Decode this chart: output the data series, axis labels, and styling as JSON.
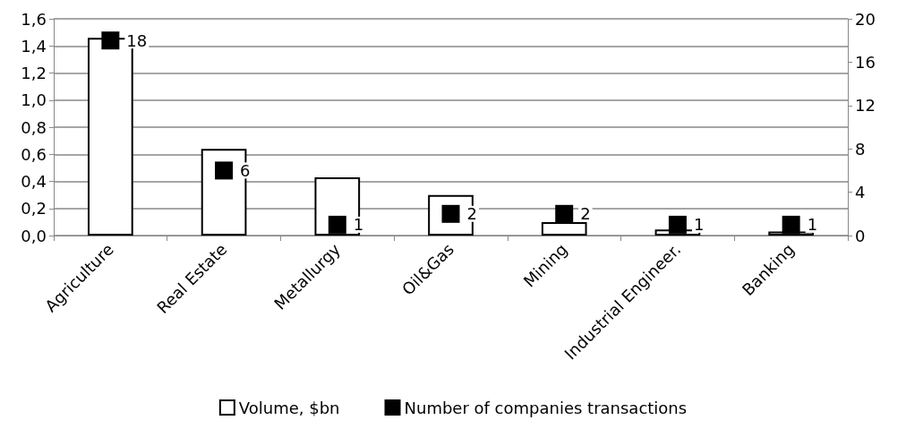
{
  "chart_data": {
    "type": "bar",
    "categories": [
      "Agriculture",
      "Real Estate",
      "Metallurgy",
      "Oil&Gas",
      "Mining",
      "Industrial Engineer.",
      "Banking"
    ],
    "series": [
      {
        "name": "Volume, $bn",
        "color": "#ffffff",
        "values": [
          1.46,
          0.64,
          0.43,
          0.3,
          0.1,
          0.045,
          0.03
        ]
      },
      {
        "name": "Number of companies transactions",
        "type": "scatter",
        "axis": "y2",
        "color": "#000000",
        "marker": "square",
        "values": [
          18,
          6,
          1,
          2,
          2,
          1,
          1
        ],
        "value_labels": [
          "18",
          "6",
          "1",
          "2",
          "2",
          "1",
          "1"
        ]
      }
    ],
    "ylim": [
      0,
      1.6
    ],
    "yticks": [
      {
        "value": 0,
        "label": "0,0"
      },
      {
        "value": 0.2,
        "label": "0,2"
      },
      {
        "value": 0.4,
        "label": "0,4"
      },
      {
        "value": 0.6,
        "label": "0,6"
      },
      {
        "value": 0.8,
        "label": "0,8"
      },
      {
        "value": 1.0,
        "label": "1,0"
      },
      {
        "value": 1.2,
        "label": "1,2"
      },
      {
        "value": 1.4,
        "label": "1,4"
      },
      {
        "value": 1.6,
        "label": "1,6"
      }
    ],
    "y2lim": [
      0,
      20
    ],
    "y2ticks": [
      0,
      4,
      8,
      12,
      16,
      20
    ],
    "grid": "y",
    "legend": "bottom"
  }
}
